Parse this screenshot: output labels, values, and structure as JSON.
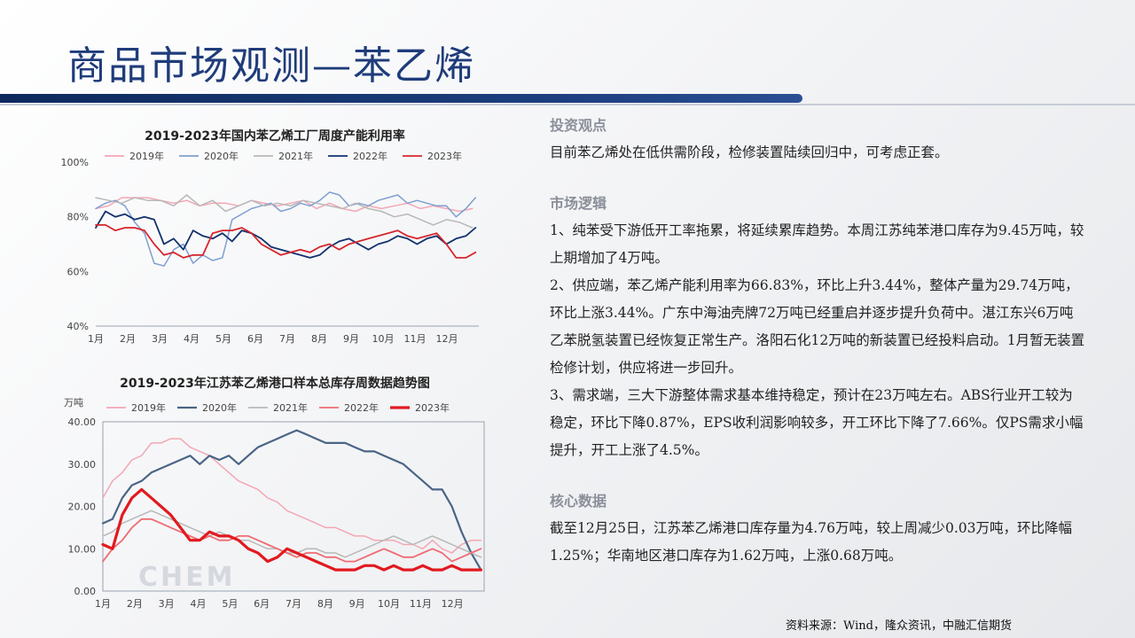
{
  "slide": {
    "title": "商品市场观测—苯乙烯",
    "source": "资料来源：Wind，隆众资讯，中融汇信期货"
  },
  "colors": {
    "title": "#1f3c7a",
    "y2019": "#f4a6b4",
    "y2020": "#7f9fd1",
    "y2021": "#b8b8b8",
    "y2022": "#12326e",
    "y2023": "#d6262c"
  },
  "right_panel": {
    "view_head": "投资观点",
    "view_text": "目前苯乙烯处在低供需阶段，检修装置陆续回归中，可考虑正套。",
    "logic_head": "市场逻辑",
    "logic_1": "1、纯苯受下游低开工率拖累，将延续累库趋势。本周江苏纯苯港口库存为9.45万吨，较上期增加了4万吨。",
    "logic_2": "2、供应端，苯乙烯产能利用率为66.83%，环比上升3.44%，整体产量为29.74万吨，环比上涨3.44%。广东中海油壳牌72万吨已经重启并逐步提升负荷中。湛江东兴6万吨乙苯脱氢装置已经恢复正常生产。洛阳石化12万吨的新装置已经投料启动。1月暂无装置检修计划，供应将进一步回升。",
    "logic_3": "3、需求端，三大下游整体需求基本维持稳定，预计在23万吨左右。ABS行业开工较为稳定，环比下降0.87%，EPS收利润影响较多，开工环比下降了7.66%。仅PS需求小幅提升，开工上涨了4.5%。",
    "data_head": "核心数据",
    "data_text": "截至12月25日，江苏苯乙烯港口库存量为4.76万吨，较上周减少0.03万吨，环比降幅1.25%；华南地区港口库存为1.62万吨，上涨0.68万吨。"
  },
  "chart_data": [
    {
      "type": "line",
      "title": "2019-2023年国内苯乙烯工厂周度产能利用率",
      "x_ticks": [
        "1月",
        "2月",
        "3月",
        "4月",
        "5月",
        "6月",
        "7月",
        "8月",
        "9月",
        "10月",
        "11月",
        "12月"
      ],
      "y_ticks": [
        "40%",
        "60%",
        "80%",
        "100%"
      ],
      "ylim": [
        40,
        100
      ],
      "xlim": [
        1,
        12.8
      ],
      "grid": false,
      "legend_position": "top",
      "series": [
        {
          "name": "2019年",
          "color": "#f4a6b4",
          "width": 1.5,
          "x": [
            1,
            1.4,
            1.8,
            2.2,
            2.6,
            3,
            3.4,
            3.8,
            4.2,
            4.6,
            5,
            5.4,
            5.8,
            6.2,
            6.6,
            7,
            7.4,
            7.8,
            8.2,
            8.6,
            9,
            9.4,
            9.8,
            10.2,
            10.6,
            11,
            11.4,
            11.8,
            12.2,
            12.6
          ],
          "values": [
            83,
            84,
            87,
            87,
            87,
            86,
            85,
            86,
            84,
            85,
            85,
            84,
            86,
            85,
            84,
            85,
            86,
            83,
            85,
            83,
            82,
            84,
            83,
            84,
            85,
            83,
            84,
            83,
            82,
            83
          ]
        },
        {
          "name": "2020年",
          "color": "#7f9fd1",
          "width": 1.5,
          "x": [
            1,
            1.3,
            1.6,
            1.9,
            2.2,
            2.5,
            2.8,
            3.1,
            3.4,
            3.7,
            4,
            4.3,
            4.6,
            4.9,
            5.2,
            5.5,
            5.8,
            6.1,
            6.4,
            6.7,
            7,
            7.3,
            7.6,
            7.9,
            8.2,
            8.5,
            8.8,
            9.1,
            9.4,
            9.7,
            10,
            10.3,
            10.6,
            10.9,
            11.2,
            11.5,
            11.8,
            12.1,
            12.4,
            12.7
          ],
          "values": [
            83,
            85,
            86,
            84,
            78,
            74,
            63,
            62,
            68,
            70,
            63,
            66,
            64,
            65,
            79,
            81,
            83,
            84,
            85,
            82,
            83,
            85,
            84,
            86,
            89,
            88,
            84,
            85,
            84,
            86,
            87,
            88,
            85,
            86,
            85,
            84,
            84,
            80,
            83,
            87
          ]
        },
        {
          "name": "2021年",
          "color": "#b8b8b8",
          "width": 1.5,
          "x": [
            1,
            1.4,
            1.8,
            2.2,
            2.6,
            3,
            3.4,
            3.8,
            4.2,
            4.6,
            5,
            5.4,
            5.8,
            6.2,
            6.6,
            7,
            7.4,
            7.8,
            8.2,
            8.6,
            9,
            9.4,
            9.8,
            10.2,
            10.6,
            11,
            11.4,
            11.8,
            12.2,
            12.6
          ],
          "values": [
            87,
            86,
            85,
            87,
            86,
            86,
            84,
            88,
            84,
            86,
            82,
            84,
            86,
            84,
            85,
            84,
            86,
            85,
            84,
            83,
            85,
            83,
            82,
            80,
            81,
            79,
            77,
            79,
            78,
            76
          ]
        },
        {
          "name": "2022年",
          "color": "#12326e",
          "width": 1.8,
          "x": [
            1,
            1.3,
            1.6,
            1.9,
            2.2,
            2.5,
            2.8,
            3.1,
            3.4,
            3.7,
            4,
            4.3,
            4.6,
            4.9,
            5.2,
            5.5,
            5.8,
            6.1,
            6.4,
            6.7,
            7,
            7.3,
            7.6,
            7.9,
            8.2,
            8.5,
            8.8,
            9.1,
            9.4,
            9.7,
            10,
            10.3,
            10.6,
            10.9,
            11.2,
            11.5,
            11.8,
            12.1,
            12.4,
            12.7
          ],
          "values": [
            76,
            82,
            80,
            81,
            79,
            80,
            79,
            70,
            72,
            68,
            75,
            73,
            72,
            74,
            71,
            75,
            74,
            72,
            69,
            68,
            67,
            66,
            65,
            66,
            69,
            71,
            72,
            70,
            68,
            70,
            71,
            73,
            72,
            70,
            72,
            73,
            70,
            72,
            73,
            76
          ]
        },
        {
          "name": "2023年",
          "color": "#d6262c",
          "width": 1.8,
          "x": [
            1,
            1.3,
            1.6,
            1.9,
            2.2,
            2.5,
            2.8,
            3.1,
            3.4,
            3.7,
            4,
            4.3,
            4.6,
            4.9,
            5.2,
            5.5,
            5.8,
            6.1,
            6.4,
            6.7,
            7,
            7.3,
            7.6,
            7.9,
            8.2,
            8.5,
            8.8,
            9.1,
            9.4,
            9.7,
            10,
            10.3,
            10.6,
            10.9,
            11.2,
            11.5,
            11.8,
            12.1,
            12.4,
            12.7
          ],
          "values": [
            77,
            77,
            75,
            76,
            76,
            75,
            70,
            66,
            67,
            65,
            66,
            66,
            74,
            75,
            75,
            76,
            74,
            70,
            68,
            66,
            67,
            68,
            67,
            69,
            70,
            68,
            70,
            71,
            72,
            73,
            74,
            75,
            73,
            72,
            73,
            74,
            70,
            65,
            65,
            67
          ]
        }
      ]
    },
    {
      "type": "line",
      "title": "2019-2023年江苏苯乙烯港口样本总库存周数据趋势图",
      "ylabel": "万吨",
      "x_ticks": [
        "1月",
        "2月",
        "3月",
        "4月",
        "5月",
        "6月",
        "7月",
        "8月",
        "9月",
        "10月",
        "11月",
        "12月"
      ],
      "y_ticks": [
        "0.00",
        "10.00",
        "20.00",
        "30.00",
        "40.00"
      ],
      "ylim": [
        0,
        40
      ],
      "xlim": [
        1,
        12.8
      ],
      "grid": false,
      "legend_position": "top",
      "watermark": "CHEM",
      "series": [
        {
          "name": "2019年",
          "color": "#f4a6b4",
          "width": 1.5,
          "x": [
            1,
            1.3,
            1.6,
            1.9,
            2.2,
            2.5,
            2.8,
            3.1,
            3.4,
            3.7,
            4,
            4.3,
            4.6,
            4.9,
            5.2,
            5.5,
            5.8,
            6.1,
            6.4,
            6.7,
            7,
            7.3,
            7.6,
            7.9,
            8.2,
            8.5,
            8.8,
            9.1,
            9.4,
            9.7,
            10,
            10.3,
            10.6,
            10.9,
            11.2,
            11.5,
            11.8,
            12.1,
            12.4,
            12.7
          ],
          "values": [
            22,
            26,
            28,
            31,
            32,
            35,
            35,
            36,
            36,
            34,
            33,
            32,
            30,
            28,
            26,
            25,
            24,
            22,
            21,
            19,
            18,
            17,
            16,
            15,
            15,
            14,
            13,
            13,
            12,
            12,
            12,
            11,
            11,
            10,
            12,
            10,
            9,
            11,
            12,
            12
          ]
        },
        {
          "name": "2020年",
          "color": "#4a6585",
          "width": 2.2,
          "x": [
            1,
            1.3,
            1.6,
            1.9,
            2.2,
            2.5,
            2.8,
            3.1,
            3.4,
            3.7,
            4,
            4.3,
            4.6,
            4.9,
            5.2,
            5.5,
            5.8,
            6.1,
            6.4,
            6.7,
            7,
            7.3,
            7.6,
            7.9,
            8.2,
            8.5,
            8.8,
            9.1,
            9.4,
            9.7,
            10,
            10.3,
            10.6,
            10.9,
            11.2,
            11.5,
            11.8,
            12.1,
            12.4,
            12.7
          ],
          "values": [
            16,
            17,
            22,
            25,
            26,
            28,
            29,
            30,
            31,
            32,
            30,
            32,
            31,
            32,
            30,
            32,
            34,
            35,
            36,
            37,
            38,
            37,
            36,
            35,
            35,
            35,
            34,
            33,
            33,
            32,
            31,
            30,
            28,
            26,
            24,
            24,
            20,
            14,
            9,
            5
          ]
        },
        {
          "name": "2021年",
          "color": "#b8b8b8",
          "width": 1.5,
          "x": [
            1,
            1.3,
            1.6,
            1.9,
            2.2,
            2.5,
            2.8,
            3.1,
            3.4,
            3.7,
            4,
            4.3,
            4.6,
            4.9,
            5.2,
            5.5,
            5.8,
            6.1,
            6.4,
            6.7,
            7,
            7.3,
            7.6,
            7.9,
            8.2,
            8.5,
            8.8,
            9.1,
            9.4,
            9.7,
            10,
            10.3,
            10.6,
            10.9,
            11.2,
            11.5,
            11.8,
            12.1,
            12.4,
            12.7
          ],
          "values": [
            13,
            14,
            16,
            17,
            18,
            19,
            18,
            17,
            16,
            15,
            14,
            13,
            14,
            13,
            12,
            12,
            11,
            10,
            10,
            9,
            9,
            10,
            10,
            9,
            9,
            8,
            9,
            10,
            11,
            12,
            13,
            12,
            11,
            12,
            13,
            12,
            11,
            10,
            9,
            8
          ]
        },
        {
          "name": "2022年",
          "color": "#ee6c73",
          "width": 1.8,
          "x": [
            1,
            1.3,
            1.6,
            1.9,
            2.2,
            2.5,
            2.8,
            3.1,
            3.4,
            3.7,
            4,
            4.3,
            4.6,
            4.9,
            5.2,
            5.5,
            5.8,
            6.1,
            6.4,
            6.7,
            7,
            7.3,
            7.6,
            7.9,
            8.2,
            8.5,
            8.8,
            9.1,
            9.4,
            9.7,
            10,
            10.3,
            10.6,
            10.9,
            11.2,
            11.5,
            11.8,
            12.1,
            12.4,
            12.7
          ],
          "values": [
            7,
            10,
            12,
            15,
            17,
            17,
            16,
            15,
            14,
            13,
            12,
            13,
            12,
            12,
            13,
            13,
            12,
            11,
            10,
            9,
            8,
            9,
            9,
            8,
            8,
            7,
            7,
            8,
            9,
            10,
            9,
            8,
            8,
            9,
            10,
            9,
            7,
            8,
            9,
            10
          ]
        },
        {
          "name": "2023年",
          "color": "#e11a1f",
          "width": 3.2,
          "x": [
            1,
            1.3,
            1.6,
            1.9,
            2.2,
            2.5,
            2.8,
            3.1,
            3.4,
            3.7,
            4,
            4.3,
            4.6,
            4.9,
            5.2,
            5.5,
            5.8,
            6.1,
            6.4,
            6.7,
            7,
            7.3,
            7.6,
            7.9,
            8.2,
            8.5,
            8.8,
            9.1,
            9.4,
            9.7,
            10,
            10.3,
            10.6,
            10.9,
            11.2,
            11.5,
            11.8,
            12.1,
            12.4,
            12.7
          ],
          "values": [
            11,
            10,
            18,
            22,
            24,
            22,
            20,
            18,
            15,
            12,
            12,
            14,
            13,
            13,
            12,
            10,
            9,
            7,
            8,
            10,
            9,
            8,
            7,
            6,
            5,
            5,
            5,
            6,
            6,
            5,
            6,
            5,
            5,
            6,
            5,
            5,
            6,
            5,
            5,
            5
          ]
        }
      ]
    }
  ]
}
